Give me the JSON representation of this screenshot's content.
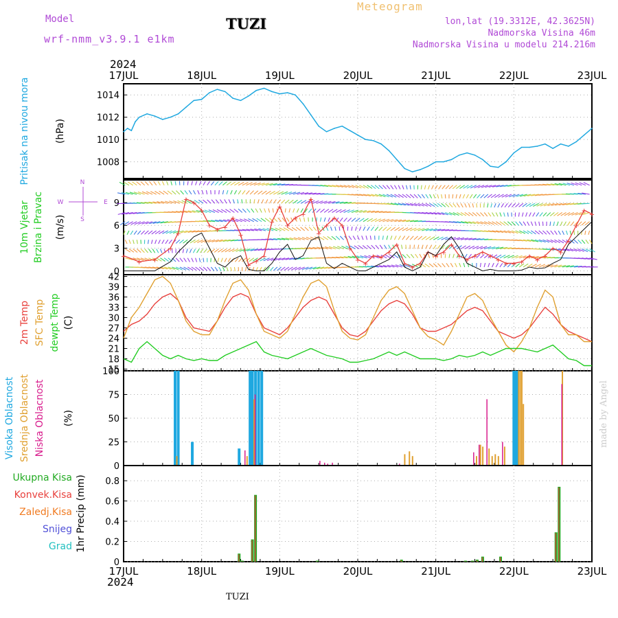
{
  "header": {
    "model_label": "Model",
    "model_name": "wrf-nmm_v3.9.1 e1km",
    "station": "TUZI",
    "product": "Meteogram",
    "lonlat": "lon,lat (19.3312E, 42.3625N)",
    "elevation": "Nadmorska Visina 46m",
    "model_elevation": "Nadmorska Visina u modelu 214.216m",
    "year_top": "2024",
    "year_bottom": "2024",
    "footer_station": "TUZI",
    "credit": "made by Angel"
  },
  "x_axis": {
    "ticks": [
      "17JUL",
      "18JUL",
      "19JUL",
      "20JUL",
      "21JUL",
      "22JUL",
      "23JUL"
    ]
  },
  "colors": {
    "pressure": "#1fa8e0",
    "temp2m": "#e8403c",
    "sfc": "#e0a030",
    "dewpt": "#22cc22",
    "high": "#1fa8e0",
    "mid": "#e0a030",
    "low": "#d81b8c",
    "precip_total": "#22aa22",
    "precip_conv": "#e8403c",
    "precip_frozen": "#f07a20",
    "snow": "#5050d8",
    "hail": "#22c0c0",
    "wind_speed": "#e8403c",
    "wind_dir": "#111111"
  },
  "chart_data": [
    {
      "type": "line",
      "ylabel": [
        "Pritisak na nivou mora",
        "(hPa)"
      ],
      "ylim": [
        1006.5,
        1015
      ],
      "yticks": [
        "1008",
        "1010",
        "1012",
        "1014"
      ],
      "grid": true,
      "x_days": [
        0,
        0.05,
        0.1,
        0.15,
        0.2,
        0.3,
        0.4,
        0.5,
        0.6,
        0.7,
        0.8,
        0.9,
        1.0,
        1.1,
        1.2,
        1.3,
        1.4,
        1.5,
        1.6,
        1.7,
        1.8,
        1.9,
        2.0,
        2.1,
        2.2,
        2.3,
        2.4,
        2.5,
        2.6,
        2.7,
        2.8,
        2.9,
        3.0,
        3.1,
        3.2,
        3.3,
        3.4,
        3.5,
        3.6,
        3.7,
        3.8,
        3.9,
        4.0,
        4.1,
        4.2,
        4.3,
        4.4,
        4.5,
        4.6,
        4.7,
        4.8,
        4.9,
        5.0,
        5.1,
        5.2,
        5.3,
        5.4,
        5.5,
        5.6,
        5.7,
        5.8,
        5.9,
        6.0
      ],
      "series": [
        {
          "values": [
            1010.7,
            1011.0,
            1010.8,
            1011.6,
            1012.0,
            1012.3,
            1012.1,
            1011.8,
            1012.0,
            1012.3,
            1012.9,
            1013.5,
            1013.6,
            1014.2,
            1014.5,
            1014.3,
            1013.7,
            1013.5,
            1013.9,
            1014.4,
            1014.6,
            1014.3,
            1014.1,
            1014.2,
            1014.0,
            1013.2,
            1012.2,
            1011.2,
            1010.7,
            1011.0,
            1011.2,
            1010.8,
            1010.4,
            1010.0,
            1009.9,
            1009.6,
            1009.0,
            1008.2,
            1007.4,
            1007.1,
            1007.3,
            1007.6,
            1008.0,
            1008.0,
            1008.2,
            1008.6,
            1008.8,
            1008.6,
            1008.2,
            1007.6,
            1007.5,
            1008.0,
            1008.8,
            1009.3,
            1009.3,
            1009.4,
            1009.6,
            1009.2,
            1009.6,
            1009.4,
            1009.8,
            1010.4,
            1011.0
          ]
        }
      ]
    },
    {
      "type": "scatter",
      "ylabel": [
        "10m Vjetar",
        "Brzina i Pravac",
        "(m/s)"
      ],
      "compass": {
        "north": "N",
        "east": "E",
        "west": "W",
        "south": "S"
      },
      "ylim": [
        -0.5,
        12
      ],
      "yticks": [
        "0",
        "3",
        "6",
        "9"
      ],
      "grid": true,
      "x_days": [
        0,
        0.2,
        0.4,
        0.6,
        0.7,
        0.8,
        0.9,
        1.0,
        1.1,
        1.2,
        1.3,
        1.4,
        1.5,
        1.6,
        1.7,
        1.8,
        1.9,
        2.0,
        2.1,
        2.2,
        2.3,
        2.4,
        2.5,
        2.6,
        2.7,
        2.8,
        2.9,
        3.0,
        3.1,
        3.2,
        3.3,
        3.4,
        3.5,
        3.6,
        3.7,
        3.8,
        3.9,
        4.0,
        4.1,
        4.2,
        4.3,
        4.4,
        4.5,
        4.6,
        4.7,
        4.8,
        4.9,
        5.0,
        5.1,
        5.2,
        5.3,
        5.4,
        5.5,
        5.6,
        5.7,
        5.8,
        5.9,
        6.0
      ],
      "series": [
        {
          "name": "speed",
          "values": [
            2.0,
            1.2,
            1.5,
            3.0,
            5.0,
            9.5,
            9.0,
            8.0,
            6.0,
            5.5,
            5.8,
            7.0,
            4.8,
            0.8,
            1.3,
            2.0,
            6.5,
            8.5,
            6.0,
            7.0,
            7.5,
            9.5,
            5.0,
            6.0,
            7.0,
            6.0,
            3.0,
            1.5,
            1.0,
            2.0,
            1.8,
            2.5,
            3.5,
            1.0,
            0.5,
            1.0,
            2.5,
            2.0,
            2.5,
            3.5,
            2.0,
            1.5,
            2.0,
            2.5,
            2.0,
            1.5,
            1.0,
            1.0,
            1.2,
            2.0,
            1.5,
            2.0,
            3.0,
            2.5,
            4.0,
            6.0,
            8.0,
            7.5
          ]
        },
        {
          "name": "direction",
          "values": [
            0,
            0,
            0,
            1.2,
            2.5,
            3.5,
            4.5,
            5.0,
            3.0,
            1.0,
            0.5,
            1.5,
            2.0,
            0.2,
            0,
            0,
            1.0,
            2.5,
            3.5,
            1.5,
            2.0,
            4.0,
            4.5,
            1.0,
            0.3,
            1.0,
            0.5,
            0,
            0,
            0.5,
            1.0,
            1.5,
            2.5,
            0.5,
            0,
            0.5,
            2.5,
            2.0,
            3.5,
            4.5,
            3.0,
            1.0,
            0.5,
            0,
            0.2,
            0,
            0,
            0,
            0.1,
            0.5,
            0.3,
            0.4,
            1.0,
            1.5,
            3.5,
            4.5,
            5.5,
            6.5
          ]
        }
      ]
    },
    {
      "type": "line",
      "ylabel": [
        "2m Temp",
        "SFC Temp",
        "dewpt Temp",
        "(C)"
      ],
      "ylim": [
        14.5,
        42.5
      ],
      "yticks": [
        "15",
        "18",
        "21",
        "24",
        "27",
        "30",
        "33",
        "36",
        "39",
        "42"
      ],
      "grid": true,
      "x_days": [
        0,
        0.1,
        0.2,
        0.3,
        0.4,
        0.5,
        0.6,
        0.7,
        0.8,
        0.9,
        1.0,
        1.1,
        1.2,
        1.3,
        1.4,
        1.5,
        1.6,
        1.7,
        1.8,
        1.9,
        2.0,
        2.1,
        2.2,
        2.3,
        2.4,
        2.5,
        2.6,
        2.7,
        2.8,
        2.9,
        3.0,
        3.1,
        3.2,
        3.3,
        3.4,
        3.5,
        3.6,
        3.7,
        3.8,
        3.9,
        4.0,
        4.1,
        4.2,
        4.3,
        4.4,
        4.5,
        4.6,
        4.7,
        4.8,
        4.9,
        5.0,
        5.1,
        5.2,
        5.3,
        5.4,
        5.5,
        5.6,
        5.7,
        5.8,
        5.9,
        6.0
      ],
      "series": [
        {
          "name": "2m Temp",
          "values": [
            26,
            28,
            29,
            31,
            34,
            36,
            37,
            35,
            30,
            27,
            26.5,
            26,
            29,
            33,
            36,
            37,
            36,
            31,
            27,
            26,
            25,
            27,
            30,
            33,
            35,
            36,
            35,
            31,
            27,
            25,
            24.5,
            26,
            29,
            32,
            34,
            35,
            34,
            31,
            27,
            26,
            26,
            27,
            28,
            30,
            32,
            33,
            32,
            29,
            26,
            25,
            24,
            25,
            27,
            30,
            33,
            31,
            28,
            26,
            25,
            24,
            23
          ]
        },
        {
          "name": "SFC Temp",
          "values": [
            24,
            30,
            33,
            37,
            41,
            42,
            40,
            35,
            29,
            26,
            25,
            25,
            29,
            35,
            40,
            41,
            38,
            31,
            26,
            25,
            24,
            26,
            31,
            36,
            40,
            41,
            39,
            32,
            26,
            24,
            23.5,
            25,
            30,
            35,
            38,
            39,
            37,
            32,
            27,
            24.5,
            23.5,
            22,
            26,
            31,
            36,
            37,
            35,
            30,
            26,
            22,
            20,
            23,
            27,
            33,
            38,
            36,
            28,
            25,
            25,
            23,
            23
          ]
        },
        {
          "name": "dewpt Temp",
          "values": [
            18,
            17,
            21,
            23,
            21,
            19,
            18,
            19,
            18,
            17.5,
            18,
            17.5,
            17.5,
            19,
            20,
            21,
            22,
            23,
            20,
            19,
            18.5,
            18,
            19,
            20,
            21,
            20,
            19,
            18.5,
            18,
            17,
            17,
            17.5,
            18,
            19,
            20,
            19,
            20,
            19,
            18,
            18,
            18,
            17.5,
            18,
            19,
            18.5,
            19,
            20,
            19,
            20,
            21,
            21,
            21,
            20.5,
            20,
            21,
            22,
            20,
            18,
            17.5,
            16,
            16
          ]
        }
      ]
    },
    {
      "type": "bar",
      "ylabel": [
        "Visoka Oblacnost",
        "Srednja Oblacnost",
        "Niska Oblacnost",
        "(%)"
      ],
      "ylim": [
        0,
        100
      ],
      "yticks": [
        "0",
        "25",
        "50",
        "75",
        "100"
      ],
      "grid": true,
      "x_days": [
        0.66,
        0.7,
        0.88,
        1.48,
        1.52,
        1.56,
        1.62,
        1.65,
        1.69,
        1.73,
        1.77,
        2.48,
        2.54,
        2.58,
        2.64,
        3.5,
        3.58,
        3.64,
        3.68,
        4.45,
        4.5,
        4.52,
        4.55,
        4.58,
        4.62,
        4.66,
        4.7,
        4.74,
        4.78,
        4.82,
        4.86,
        5.0,
        5.02,
        5.04,
        5.06,
        5.08,
        5.1,
        5.58,
        5.6
      ],
      "series": [
        {
          "name": "Visoka Oblacnost",
          "values": [
            100,
            100,
            25,
            18,
            0,
            0,
            100,
            100,
            100,
            100,
            100,
            0,
            0,
            0,
            0,
            0,
            0,
            0,
            0,
            0,
            0,
            0,
            0,
            0,
            0,
            0,
            0,
            0,
            0,
            0,
            0,
            100,
            100,
            100,
            0,
            0,
            0,
            0,
            0
          ]
        },
        {
          "name": "Srednja Oblacnost",
          "values": [
            10,
            0,
            0,
            0,
            0,
            10,
            0,
            70,
            0,
            0,
            0,
            0,
            0,
            0,
            0,
            0,
            12,
            15,
            10,
            0,
            10,
            0,
            22,
            20,
            0,
            18,
            10,
            12,
            10,
            0,
            20,
            0,
            0,
            100,
            100,
            100,
            65,
            0,
            100
          ]
        },
        {
          "name": "Niska Oblacnost",
          "values": [
            0,
            0,
            0,
            0,
            16,
            0,
            0,
            75,
            0,
            0,
            0,
            5,
            3,
            2,
            3,
            2,
            0,
            0,
            0,
            14,
            0,
            22,
            0,
            0,
            70,
            0,
            0,
            0,
            0,
            25,
            0,
            0,
            0,
            0,
            0,
            0,
            0,
            86,
            0
          ]
        }
      ]
    },
    {
      "type": "bar",
      "ylabel": [
        "1hr Precip (mm)"
      ],
      "legend": [
        "Ukupna Kisa",
        "Konvek.Kisa",
        "Zaledj.Kisa",
        "Snijeg",
        "Grad"
      ],
      "ylim": [
        0,
        0.95
      ],
      "yticks": [
        "0",
        "0.2",
        "0.4",
        "0.6",
        "0.8"
      ],
      "grid": true,
      "x_days": [
        1.48,
        1.52,
        1.65,
        1.69,
        2.48,
        3.56,
        4.38,
        4.47,
        4.53,
        4.6,
        4.83,
        5.54,
        5.58
      ],
      "series": [
        {
          "name": "Ukupna Kisa",
          "values": [
            0.08,
            0.01,
            0.22,
            0.66,
            0.01,
            0.02,
            0.01,
            0.01,
            0.02,
            0.05,
            0.05,
            0.29,
            0.74
          ]
        }
      ]
    }
  ]
}
